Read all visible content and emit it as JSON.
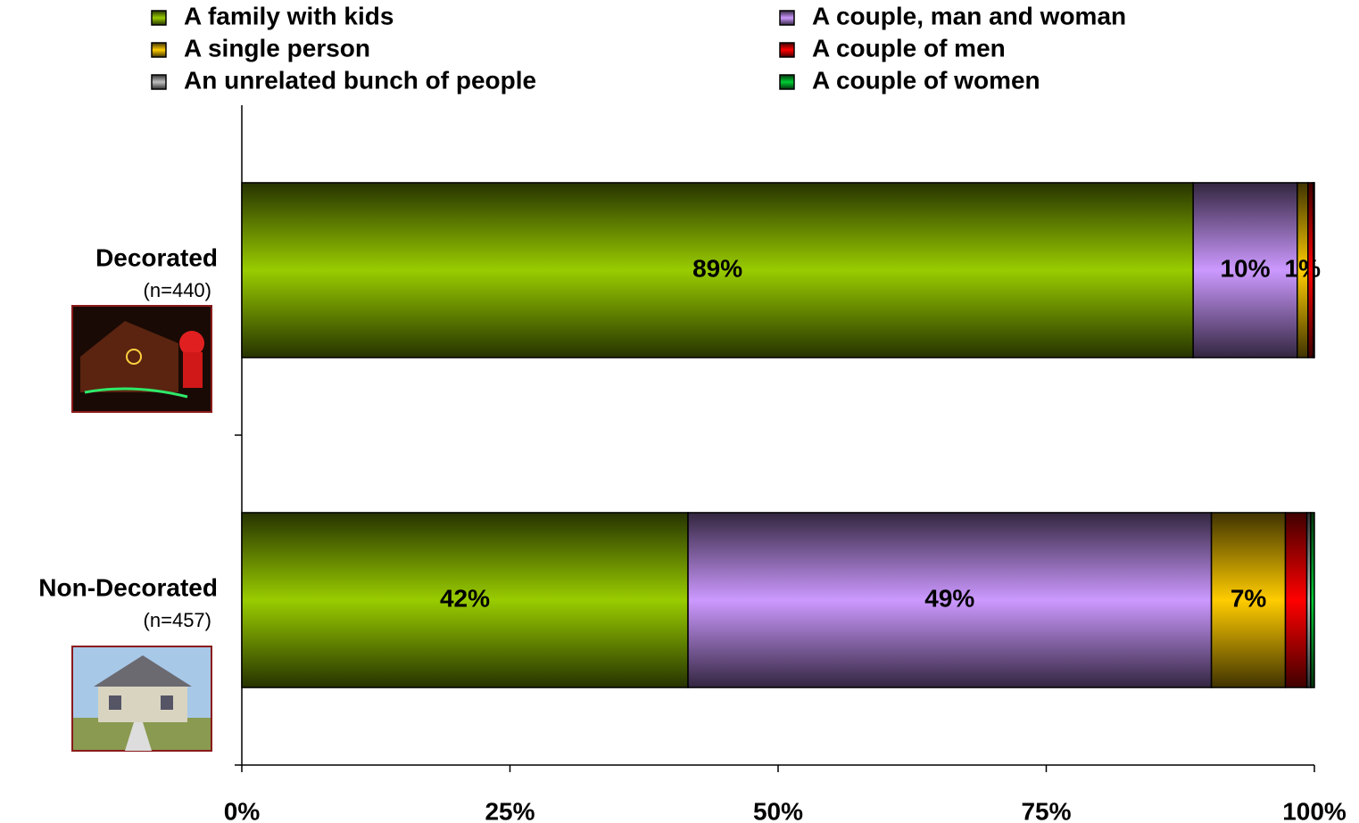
{
  "chart_data": {
    "type": "stacked-bar-horizontal",
    "categories": [
      "Decorated",
      "Non-Decorated"
    ],
    "category_notes": [
      "(n=440)",
      "(n=457)"
    ],
    "series": [
      {
        "name": "A family with kids",
        "color": "#99cc00",
        "values": [
          88.7,
          41.6
        ],
        "value_labels": [
          "89%",
          "42%"
        ]
      },
      {
        "name": "A couple, man and woman",
        "color": "#cc99ff",
        "values": [
          9.7,
          48.8
        ],
        "value_labels": [
          "10%",
          "49%"
        ]
      },
      {
        "name": "A single person",
        "color": "#ffcc00",
        "values": [
          1.0,
          6.9
        ],
        "value_labels": [
          "1%",
          "7%"
        ]
      },
      {
        "name": "A couple of men",
        "color": "#ff0000",
        "values": [
          0.5,
          2.0
        ],
        "value_labels": [
          null,
          null
        ]
      },
      {
        "name": "An unrelated bunch of people",
        "color": "#c0c0c0",
        "values": [
          0.05,
          0.35
        ],
        "value_labels": [
          null,
          null
        ]
      },
      {
        "name": "A couple of women",
        "color": "#00cc33",
        "values": [
          0.05,
          0.35
        ],
        "value_labels": [
          null,
          null
        ]
      }
    ],
    "xlim": [
      0,
      100
    ],
    "xticks": [
      {
        "value": 0,
        "label": "0%"
      },
      {
        "value": 25,
        "label": "25%"
      },
      {
        "value": 50,
        "label": "50%"
      },
      {
        "value": 75,
        "label": "75%"
      },
      {
        "value": 100,
        "label": "100%"
      }
    ]
  }
}
